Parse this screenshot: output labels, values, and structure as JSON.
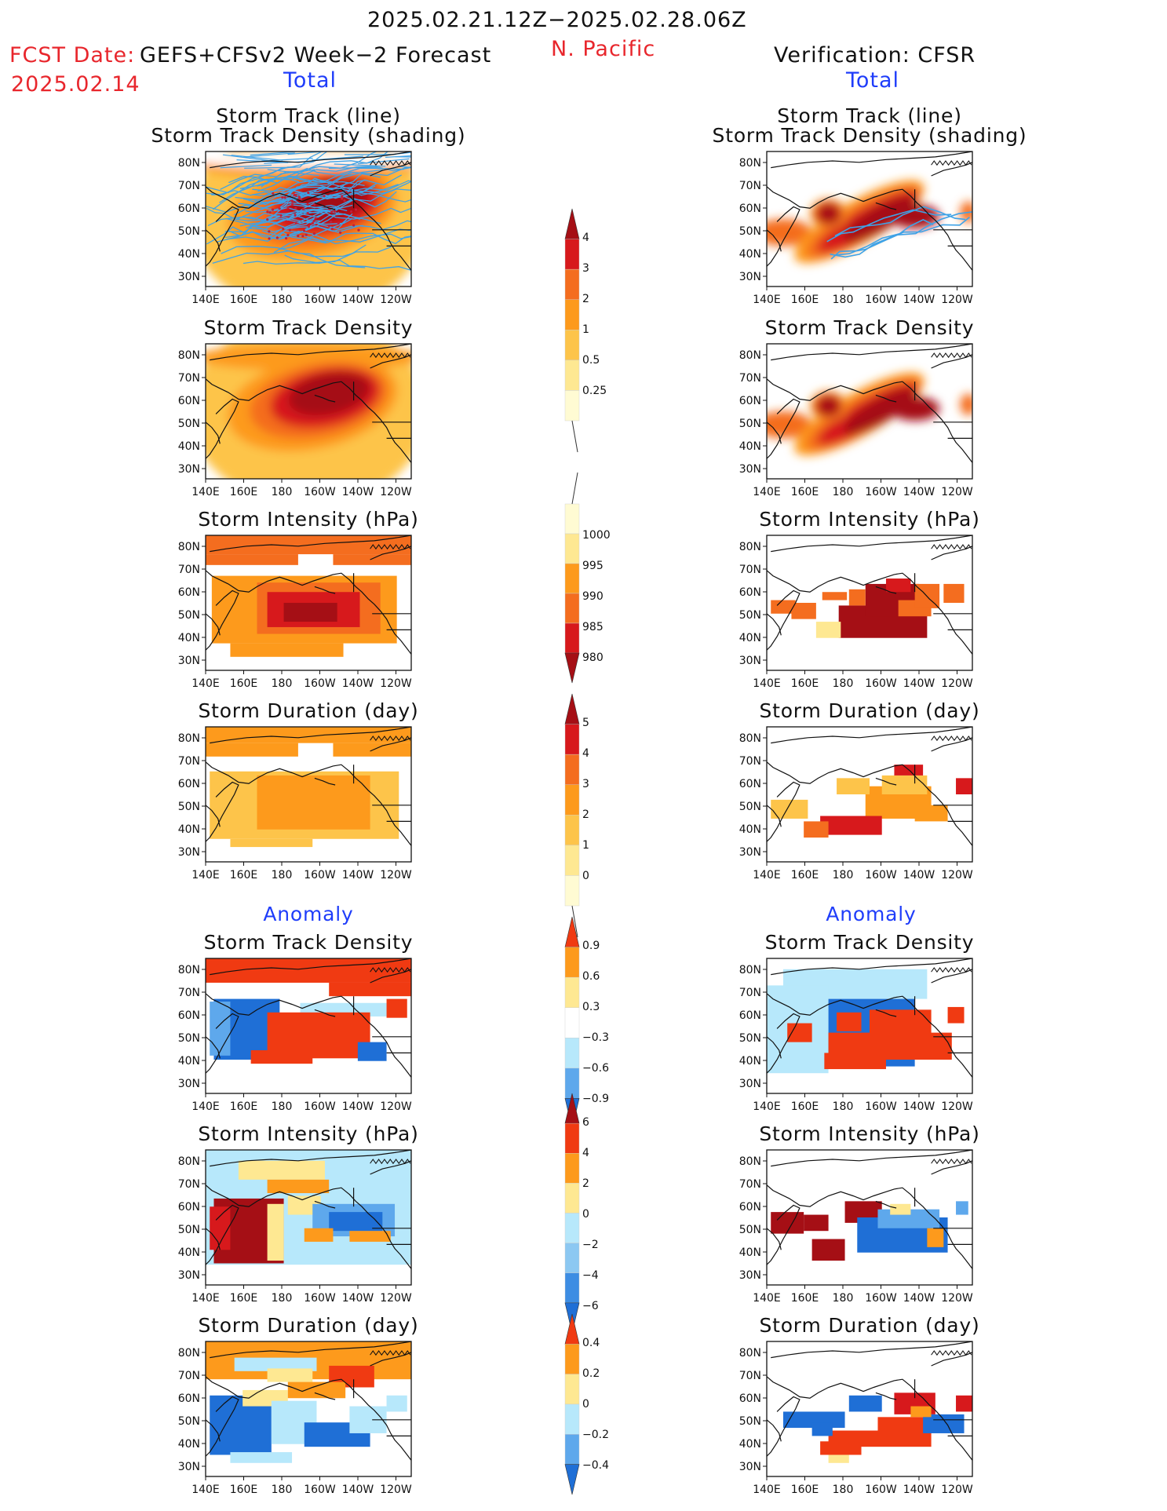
{
  "header": {
    "period": "2025.02.21.12Z−2025.02.28.06Z",
    "region": "N. Pacific",
    "fcst_label": "FCST Date:",
    "fcst_model": "GEFS+CFSv2 Week−2 Forecast",
    "fcst_date": "2025.02.14",
    "verification": "Verification: CFSR"
  },
  "sections": {
    "total": "Total",
    "anomaly": "Anomaly"
  },
  "axes": {
    "lat_ticks": [
      "80N",
      "70N",
      "60N",
      "50N",
      "40N",
      "30N"
    ],
    "lon_ticks": [
      "140E",
      "160E",
      "180",
      "160W",
      "140W",
      "120W"
    ]
  },
  "panels": [
    {
      "id": "fc-track",
      "col": "forecast",
      "title1": "Storm Track (line)",
      "title2": "Storm Track Density (shading)"
    },
    {
      "id": "fc-density",
      "col": "forecast",
      "title1": "Storm Track Density"
    },
    {
      "id": "fc-intensity",
      "col": "forecast",
      "title1": "Storm Intensity (hPa)"
    },
    {
      "id": "fc-duration",
      "col": "forecast",
      "title1": "Storm Duration (day)"
    },
    {
      "id": "fc-anom-density",
      "col": "forecast",
      "title1": "Storm Track Density"
    },
    {
      "id": "fc-anom-intensity",
      "col": "forecast",
      "title1": "Storm Intensity (hPa)"
    },
    {
      "id": "fc-anom-duration",
      "col": "forecast",
      "title1": "Storm Duration (day)"
    },
    {
      "id": "vf-track",
      "col": "verification",
      "title1": "Storm Track (line)",
      "title2": "Storm Track Density (shading)"
    },
    {
      "id": "vf-density",
      "col": "verification",
      "title1": "Storm Track Density"
    },
    {
      "id": "vf-intensity",
      "col": "verification",
      "title1": "Storm Intensity (hPa)"
    },
    {
      "id": "vf-duration",
      "col": "verification",
      "title1": "Storm Duration (day)"
    },
    {
      "id": "vf-anom-density",
      "col": "verification",
      "title1": "Storm Track Density"
    },
    {
      "id": "vf-anom-intensity",
      "col": "verification",
      "title1": "Storm Intensity (hPa)"
    },
    {
      "id": "vf-anom-duration",
      "col": "verification",
      "title1": "Storm Duration (day)"
    }
  ],
  "colorbars": [
    {
      "id": "cb-density",
      "labels": [
        "4",
        "3",
        "2",
        "1",
        "0.5",
        "0.25"
      ],
      "colors": [
        "#a50f15",
        "#d7191c",
        "#f46d1f",
        "#fd9a1c",
        "#fdc44a",
        "#fee892",
        "#fffbd3"
      ]
    },
    {
      "id": "cb-intensity",
      "labels": [
        "1000",
        "995",
        "990",
        "985",
        "980"
      ],
      "colors": [
        "#fffbd3",
        "#fee892",
        "#fd9a1c",
        "#f46d1f",
        "#d7191c",
        "#a50f15"
      ]
    },
    {
      "id": "cb-duration",
      "labels": [
        "5",
        "4",
        "3",
        "2",
        "1",
        "0"
      ],
      "colors": [
        "#a50f15",
        "#d7191c",
        "#f46d1f",
        "#fd9a1c",
        "#fdc44a",
        "#fee892",
        "#fffbd3"
      ]
    },
    {
      "id": "cb-anom-density",
      "labels": [
        "0.9",
        "0.6",
        "0.3",
        "−0.3",
        "−0.6",
        "−0.9"
      ],
      "colors": [
        "#f03a12",
        "#fd9a1c",
        "#fee892",
        "#ffffff",
        "#b7e8fb",
        "#5ea8ec",
        "#1f6fd6"
      ]
    },
    {
      "id": "cb-anom-intensity",
      "labels": [
        "6",
        "4",
        "2",
        "0",
        "−2",
        "−4",
        "−6"
      ],
      "colors": [
        "#a50f15",
        "#f03a12",
        "#fd9a1c",
        "#fee892",
        "#b7e8fb",
        "#8cc8f2",
        "#3d8de3",
        "#1f6fd6"
      ]
    },
    {
      "id": "cb-anom-duration",
      "labels": [
        "0.4",
        "0.2",
        "0",
        "−0.2",
        "−0.4"
      ],
      "colors": [
        "#f03a12",
        "#fd9a1c",
        "#fee892",
        "#b7e8fb",
        "#5ea8ec",
        "#1f6fd6"
      ]
    }
  ]
}
